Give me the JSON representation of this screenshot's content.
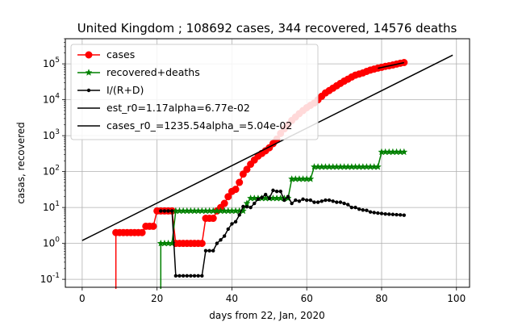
{
  "chart_data": {
    "type": "line",
    "title": "United Kingdom ; 108692 cases, 344 recovered, 14576 deaths",
    "xlabel": "days from 22, Jan, 2020",
    "ylabel": "casas, recovered",
    "xlim": [
      -4.5,
      103.5
    ],
    "ylim": [
      0.06,
      500000
    ],
    "yscale": "log",
    "grid": true,
    "legend_position": "top-left",
    "x_ticks": [
      0,
      20,
      40,
      60,
      80,
      100
    ],
    "x_tick_labels": [
      "0",
      "20",
      "40",
      "60",
      "80",
      "100"
    ],
    "y_ticks": [
      0.1,
      1,
      10,
      100,
      1000,
      10000,
      100000
    ],
    "y_tick_labels": [
      "10^-1",
      "10^0",
      "10^1",
      "10^2",
      "10^3",
      "10^4",
      "10^5"
    ],
    "series": [
      {
        "name": "cases",
        "color": "#ff0000",
        "marker": "circle",
        "x": [
          9,
          10,
          11,
          12,
          13,
          14,
          15,
          16,
          17,
          18,
          19,
          20,
          21,
          22,
          23,
          24,
          25,
          26,
          27,
          28,
          29,
          30,
          31,
          32,
          33,
          34,
          35,
          36,
          37,
          38,
          39,
          40,
          41,
          42,
          43,
          44,
          45,
          46,
          47,
          48,
          49,
          50,
          51,
          52,
          53,
          54,
          55,
          56,
          57,
          58,
          59,
          60,
          61,
          62,
          63,
          64,
          65,
          66,
          67,
          68,
          69,
          70,
          71,
          72,
          73,
          74,
          75,
          76,
          77,
          78,
          79,
          80,
          81,
          82,
          83,
          84,
          85,
          86
        ],
        "y": [
          2,
          2,
          2,
          2,
          2,
          2,
          2,
          2,
          3,
          3,
          3,
          8,
          8,
          8,
          8,
          8,
          1,
          1,
          1,
          1,
          1,
          1,
          1,
          1,
          5,
          5,
          5,
          8,
          10,
          13,
          20,
          28,
          32,
          50,
          85,
          115,
          160,
          210,
          270,
          320,
          380,
          460,
          600,
          800,
          1150,
          1550,
          2000,
          2650,
          3300,
          4100,
          5000,
          6000,
          7000,
          8100,
          10000,
          12500,
          15500,
          18000,
          21000,
          24500,
          28500,
          33000,
          37500,
          43000,
          48500,
          52000,
          56000,
          61500,
          67000,
          71500,
          76000,
          80000,
          85000,
          88500,
          93000,
          98500,
          104000,
          108692
        ]
      },
      {
        "name": "recovered+deaths",
        "color": "#008000",
        "marker": "star",
        "x": [
          21,
          22,
          23,
          24,
          25,
          26,
          27,
          28,
          29,
          30,
          31,
          32,
          33,
          34,
          35,
          36,
          37,
          38,
          39,
          40,
          41,
          42,
          43,
          44,
          45,
          46,
          47,
          48,
          49,
          50,
          51,
          52,
          53,
          54,
          55,
          56,
          57,
          58,
          59,
          60,
          61,
          62,
          63,
          64,
          65,
          66,
          67,
          68,
          69,
          70,
          71,
          72,
          73,
          74,
          75,
          76,
          77,
          78,
          79,
          80,
          81,
          82,
          83,
          84,
          85,
          86
        ],
        "y": [
          1,
          1,
          1,
          1,
          8,
          8,
          8,
          8,
          8,
          8,
          8,
          8,
          8,
          8,
          8,
          8,
          8,
          8,
          8,
          8,
          8,
          8,
          8,
          13,
          18,
          18,
          18,
          18,
          18,
          18,
          18,
          18,
          18,
          18,
          18,
          62,
          62,
          62,
          62,
          62,
          62,
          135,
          135,
          135,
          135,
          135,
          135,
          135,
          135,
          135,
          135,
          135,
          135,
          135,
          135,
          135,
          135,
          135,
          135,
          350,
          350,
          350,
          350,
          350,
          350,
          350
        ]
      },
      {
        "name": "I/(R+D)",
        "color": "#000000",
        "marker": "dot",
        "x": [
          21,
          22,
          23,
          24,
          25,
          26,
          27,
          28,
          29,
          30,
          31,
          32,
          33,
          34,
          35,
          36,
          37,
          38,
          39,
          40,
          41,
          42,
          43,
          44,
          45,
          46,
          47,
          48,
          49,
          50,
          51,
          52,
          53,
          54,
          55,
          56,
          57,
          58,
          59,
          60,
          61,
          62,
          63,
          64,
          65,
          66,
          67,
          68,
          69,
          70,
          71,
          72,
          73,
          74,
          75,
          76,
          77,
          78,
          79,
          80,
          81,
          82,
          83,
          84,
          85,
          86
        ],
        "y": [
          8,
          8,
          8,
          8,
          0.125,
          0.125,
          0.125,
          0.125,
          0.125,
          0.125,
          0.125,
          0.125,
          0.625,
          0.625,
          0.625,
          1,
          1.25,
          1.6,
          2.5,
          3.5,
          4,
          6.2,
          10.6,
          10.5,
          10,
          13,
          17,
          19,
          23,
          18,
          30,
          28,
          28,
          16,
          20,
          13,
          16,
          15,
          17,
          16,
          16,
          14,
          14,
          15,
          16,
          16,
          15,
          14,
          14,
          13,
          12,
          10,
          10,
          9,
          8.5,
          8.3,
          7.5,
          7.2,
          7,
          6.8,
          6.6,
          6.5,
          6.4,
          6.3,
          6.2,
          6.1
        ]
      },
      {
        "name": "est_r0=1.17alpha=6.77e-02",
        "color": "#000000",
        "marker": "none",
        "x": [
          79,
          86
        ],
        "y": [
          75000,
          108000
        ]
      },
      {
        "name": "cases_r0_=1235.54alpha_=5.04e-02",
        "color": "#000000",
        "marker": "none",
        "x": [
          0,
          99
        ],
        "y": [
          1.2,
          175000
        ]
      }
    ]
  }
}
